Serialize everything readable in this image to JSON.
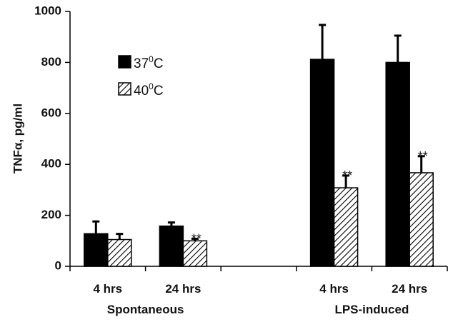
{
  "chart_data": {
    "type": "bar",
    "ylabel": "TNFα, pg/ml",
    "ylim": [
      0,
      1000
    ],
    "yticks": [
      "0",
      "200",
      "400",
      "600",
      "800",
      "1000"
    ],
    "categories": [
      "4 hrs",
      "24 hrs",
      "4 hrs",
      "24 hrs"
    ],
    "groups": [
      {
        "label": "Spontaneous",
        "categories": [
          0,
          1
        ]
      },
      {
        "label": "LPS-induced",
        "categories": [
          2,
          3
        ]
      }
    ],
    "series": [
      {
        "name": "37",
        "unit": "C",
        "sup": "0",
        "pattern": "solid",
        "values": [
          128,
          158,
          812,
          800
        ],
        "errors": [
          48,
          14,
          135,
          105
        ]
      },
      {
        "name": "40",
        "unit": "C",
        "sup": "0",
        "pattern": "hatched",
        "values": [
          105,
          100,
          308,
          367
        ],
        "errors": [
          22,
          8,
          48,
          65
        ]
      }
    ],
    "annotations": [
      {
        "category": 1,
        "series": 1,
        "text": "**"
      },
      {
        "category": 2,
        "series": 1,
        "text": "**"
      },
      {
        "category": 3,
        "series": 1,
        "text": "**"
      }
    ]
  }
}
